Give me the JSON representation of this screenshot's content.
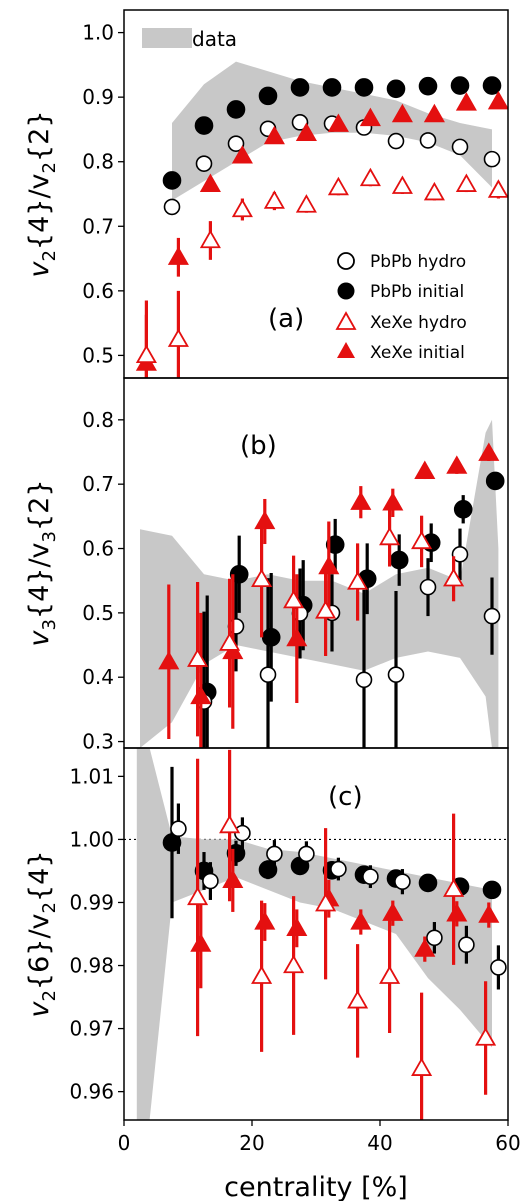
{
  "figure": {
    "xlabel": "centrality [%]",
    "xlim": [
      0,
      60
    ],
    "xticks": [
      0,
      20,
      40,
      60
    ]
  },
  "legend_entries": [
    {
      "label": "PbPb hydro",
      "marker": "open-circle",
      "color": "#000000"
    },
    {
      "label": "PbPb initial",
      "marker": "filled-circle",
      "color": "#000000"
    },
    {
      "label": "XeXe hydro",
      "marker": "open-triangle",
      "color": "#e41010"
    },
    {
      "label": "XeXe initial",
      "marker": "filled-triangle",
      "color": "#e41010"
    },
    {
      "label": "data",
      "marker": "band",
      "color": "#c8c8c8"
    }
  ],
  "chart_data": [
    {
      "type": "scatter",
      "panel_label": "(a)",
      "ylabel_main": "v",
      "ylabel_sub": "2",
      "ylabel_rest": "{4}/v",
      "ylabel_sub2": "2",
      "ylabel_end": "{2}",
      "ylim": [
        0.465,
        1.035
      ],
      "yticks": [
        0.5,
        0.6,
        0.7,
        0.8,
        0.9,
        1.0
      ],
      "ytick_labels": [
        "0.5",
        "0.6",
        "0.7",
        "0.8",
        "0.9",
        "1.0"
      ],
      "legend": "data-top-left, series-right",
      "band": {
        "name": "data",
        "x": [
          7.5,
          12.5,
          17.5,
          22.5,
          27.5,
          32.5,
          37.5,
          42.5,
          47.5,
          52.5,
          57.5
        ],
        "low": [
          0.74,
          0.77,
          0.8,
          0.83,
          0.84,
          0.845,
          0.845,
          0.84,
          0.83,
          0.81,
          0.76
        ],
        "high": [
          0.86,
          0.92,
          0.955,
          0.94,
          0.925,
          0.915,
          0.905,
          0.895,
          0.875,
          0.86,
          0.85
        ]
      },
      "series": [
        {
          "name": "PbPb hydro",
          "x": [
            7.5,
            12.5,
            17.5,
            22.5,
            27.5,
            32.5,
            37.5,
            42.5,
            47.5,
            52.5,
            57.5
          ],
          "y": [
            0.73,
            0.797,
            0.828,
            0.851,
            0.861,
            0.859,
            0.853,
            0.832,
            0.833,
            0.823,
            0.804
          ],
          "err": [
            0.01,
            0.008,
            0.007,
            0.006,
            0.006,
            0.006,
            0.006,
            0.007,
            0.007,
            0.008,
            0.009
          ]
        },
        {
          "name": "PbPb initial",
          "x": [
            7.5,
            12.5,
            17.5,
            22.5,
            27.5,
            32.5,
            37.5,
            42.5,
            47.5,
            52.5,
            57.5
          ],
          "y": [
            0.771,
            0.856,
            0.881,
            0.902,
            0.915,
            0.915,
            0.915,
            0.913,
            0.917,
            0.918,
            0.918
          ],
          "err": [
            0.006,
            0.005,
            0.004,
            0.004,
            0.004,
            0.004,
            0.004,
            0.004,
            0.004,
            0.004,
            0.004
          ]
        },
        {
          "name": "XeXe hydro",
          "x": [
            3.5,
            8.5,
            13.5,
            18.5,
            23.5,
            28.5,
            33.5,
            38.5,
            43.5,
            48.5,
            53.5,
            58.5
          ],
          "y": [
            0.5,
            0.525,
            0.678,
            0.726,
            0.739,
            0.733,
            0.76,
            0.774,
            0.762,
            0.752,
            0.765,
            0.756
          ],
          "err": [
            0.085,
            0.075,
            0.03,
            0.017,
            0.014,
            0.012,
            0.012,
            0.012,
            0.012,
            0.012,
            0.012,
            0.013
          ]
        },
        {
          "name": "XeXe initial",
          "x": [
            3.5,
            8.5,
            13.5,
            18.5,
            23.5,
            28.5,
            33.5,
            38.5,
            43.5,
            48.5,
            53.5,
            58.5
          ],
          "y": [
            0.488,
            0.652,
            0.765,
            0.809,
            0.839,
            0.844,
            0.858,
            0.867,
            0.873,
            0.873,
            0.891,
            0.893
          ],
          "err": [
            0.075,
            0.03,
            0.008,
            0.006,
            0.005,
            0.005,
            0.005,
            0.005,
            0.005,
            0.005,
            0.005,
            0.005
          ]
        }
      ]
    },
    {
      "type": "scatter",
      "panel_label": "(b)",
      "ylabel_main": "v",
      "ylabel_sub": "3",
      "ylabel_rest": "{4}/v",
      "ylabel_sub2": "3",
      "ylabel_end": "{2}",
      "ylim": [
        0.29,
        0.865
      ],
      "yticks": [
        0.3,
        0.4,
        0.5,
        0.6,
        0.7,
        0.8
      ],
      "ytick_labels": [
        "0.3",
        "0.4",
        "0.5",
        "0.6",
        "0.7",
        "0.8"
      ],
      "band": {
        "name": "data",
        "x": [
          2.5,
          7.5,
          12.5,
          17.5,
          22.5,
          27.5,
          32.5,
          37.5,
          42.5,
          47.5,
          52.5,
          56.5,
          57.5,
          58.5
        ],
        "low": [
          0.29,
          0.33,
          0.42,
          0.45,
          0.44,
          0.43,
          0.42,
          0.41,
          0.43,
          0.44,
          0.43,
          0.37,
          0.29,
          0.29
        ],
        "high": [
          0.63,
          0.62,
          0.56,
          0.55,
          0.56,
          0.55,
          0.55,
          0.53,
          0.56,
          0.57,
          0.55,
          0.78,
          0.8,
          0.6
        ]
      },
      "series": [
        {
          "name": "PbPb hydro",
          "x": [
            12.5,
            17.5,
            22.5,
            27.5,
            32.5,
            37.5,
            42.5,
            47.5,
            52.5,
            57.5
          ],
          "y": [
            0.362,
            0.479,
            0.404,
            0.499,
            0.5,
            0.396,
            0.404,
            0.54,
            0.591,
            0.495
          ],
          "err": [
            0.14,
            0.07,
            0.15,
            0.07,
            0.06,
            0.14,
            0.13,
            0.045,
            0.04,
            0.06
          ]
        },
        {
          "name": "PbPb initial",
          "x": [
            13.0,
            18.0,
            23.0,
            28.0,
            33.0,
            38.0,
            43.0,
            48.0,
            53.0,
            58.0
          ],
          "y": [
            0.377,
            0.56,
            0.462,
            0.512,
            0.606,
            0.553,
            0.582,
            0.609,
            0.661,
            0.705
          ],
          "err": [
            0.15,
            0.06,
            0.1,
            0.07,
            0.04,
            0.055,
            0.04,
            0.03,
            0.022,
            0.012
          ]
        },
        {
          "name": "XeXe hydro",
          "x": [
            11.5,
            16.5,
            21.5,
            26.5,
            31.5,
            36.5,
            41.5,
            46.5,
            51.5
          ],
          "y": [
            0.428,
            0.453,
            0.552,
            0.519,
            0.503,
            0.548,
            0.617,
            0.611,
            0.553
          ],
          "err": [
            0.12,
            0.1,
            0.09,
            0.07,
            0.07,
            0.06,
            0.045,
            0.04,
            0.035
          ]
        },
        {
          "name": "XeXe initial",
          "x": [
            7.0,
            12.0,
            17.0,
            22.0,
            27.0,
            32.0,
            37.0,
            42.0,
            47.0,
            52.0,
            57.0
          ],
          "y": [
            0.424,
            0.37,
            0.44,
            0.642,
            0.46,
            0.572,
            0.672,
            0.671,
            0.72,
            0.728,
            0.748
          ],
          "err": [
            0.12,
            0.13,
            0.12,
            0.035,
            0.1,
            0.07,
            0.025,
            0.022,
            0.012,
            0.012,
            0.012
          ]
        }
      ]
    },
    {
      "type": "scatter",
      "panel_label": "(c)",
      "ylabel_main": "v",
      "ylabel_sub": "2",
      "ylabel_rest": "{6}/v",
      "ylabel_sub2": "2",
      "ylabel_end": "{4}",
      "ylim": [
        0.9555,
        1.0145
      ],
      "yticks": [
        0.96,
        0.97,
        0.98,
        0.99,
        1.0,
        1.01
      ],
      "ytick_labels": [
        "0.96",
        "0.97",
        "0.98",
        "0.99",
        "1.00",
        "1.01"
      ],
      "reference_line": 1.0,
      "band": {
        "name": "data",
        "x": [
          2.0,
          4.0,
          7.5,
          12.5,
          17.5,
          22.5,
          27.5,
          32.5,
          37.5,
          42.5,
          47.5,
          52.5,
          57.5
        ],
        "low": [
          0.9555,
          0.9555,
          0.99,
          0.992,
          0.994,
          0.992,
          0.99,
          0.989,
          0.987,
          0.985,
          0.978,
          0.973,
          0.967
        ],
        "high": [
          1.0145,
          1.0145,
          1.0005,
          1.0,
          1.0,
          0.9985,
          0.998,
          0.997,
          0.996,
          0.995,
          0.994,
          0.993,
          0.992
        ]
      },
      "series": [
        {
          "name": "PbPb hydro",
          "x": [
            8.5,
            13.5,
            18.5,
            23.5,
            28.5,
            33.5,
            38.5,
            43.5,
            48.5,
            53.5,
            58.5
          ],
          "y": [
            1.0017,
            0.9934,
            1.001,
            0.9977,
            0.9977,
            0.9953,
            0.9941,
            0.9933,
            0.9844,
            0.9833,
            0.9797
          ],
          "err": [
            0.004,
            0.003,
            0.0025,
            0.0022,
            0.002,
            0.0018,
            0.0018,
            0.002,
            0.0025,
            0.003,
            0.0035
          ]
        },
        {
          "name": "PbPb initial",
          "x": [
            7.5,
            12.5,
            17.5,
            22.5,
            27.5,
            32.5,
            37.5,
            42.5,
            47.5,
            52.5,
            57.5
          ],
          "y": [
            0.9995,
            0.995,
            0.9978,
            0.9952,
            0.9958,
            0.9951,
            0.9944,
            0.9938,
            0.9931,
            0.9925,
            0.992
          ],
          "err": [
            0.012,
            0.003,
            0.002,
            0.0015,
            0.0012,
            0.0012,
            0.0012,
            0.0012,
            0.0012,
            0.0012,
            0.0012
          ]
        },
        {
          "name": "XeXe hydro",
          "x": [
            11.5,
            16.5,
            21.5,
            26.5,
            31.5,
            36.5,
            41.5,
            46.5,
            51.5,
            56.5
          ],
          "y": [
            0.9908,
            1.0022,
            0.9783,
            0.98,
            0.9898,
            0.9744,
            0.9783,
            0.9637,
            0.9921,
            0.9685
          ],
          "err": [
            0.022,
            0.012,
            0.012,
            0.011,
            0.012,
            0.009,
            0.009,
            0.012,
            0.012,
            0.009
          ]
        },
        {
          "name": "XeXe initial",
          "x": [
            12.0,
            17.0,
            22.0,
            27.0,
            32.0,
            37.0,
            42.0,
            47.0,
            52.0,
            57.0
          ],
          "y": [
            0.9834,
            0.9935,
            0.9869,
            0.9859,
            0.9906,
            0.9869,
            0.9883,
            0.9826,
            0.9882,
            0.988
          ],
          "err": [
            0.007,
            0.005,
            0.003,
            0.003,
            0.003,
            0.002,
            0.002,
            0.002,
            0.002,
            0.002
          ]
        }
      ]
    }
  ]
}
